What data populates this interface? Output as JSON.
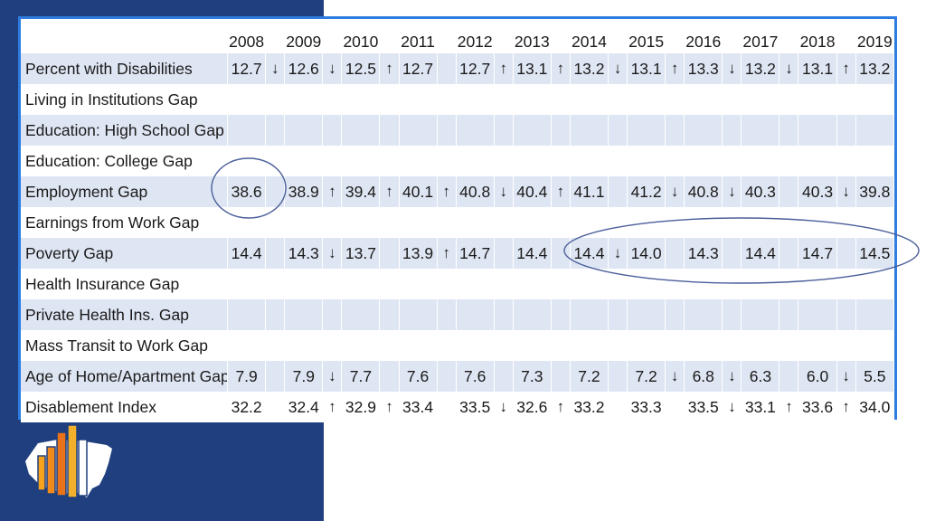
{
  "table": {
    "years": [
      "2008",
      "2009",
      "2010",
      "2011",
      "2012",
      "2013",
      "2014",
      "2015",
      "2016",
      "2017",
      "2018",
      "2019"
    ],
    "rows": [
      {
        "label": "Percent with Disabilities",
        "values": [
          "12.7",
          "12.6",
          "12.5",
          "12.7",
          "12.7",
          "13.1",
          "13.2",
          "13.1",
          "13.3",
          "13.2",
          "13.1",
          "13.2"
        ],
        "arrows": [
          "↓",
          "↓",
          "↑",
          "",
          "↑",
          "↑",
          "↓",
          "↑",
          "↓",
          "↓",
          "↑"
        ]
      },
      {
        "label": "Living in Institutions Gap",
        "values": [
          "",
          "",
          "",
          "",
          "",
          "",
          "",
          "",
          "",
          "",
          "",
          ""
        ],
        "arrows": [
          "",
          "",
          "",
          "",
          "",
          "",
          "",
          "",
          "",
          "",
          ""
        ]
      },
      {
        "label": "Education: High School Gap",
        "values": [
          "",
          "",
          "",
          "",
          "",
          "",
          "",
          "",
          "",
          "",
          "",
          ""
        ],
        "arrows": [
          "",
          "",
          "",
          "",
          "",
          "",
          "",
          "",
          "",
          "",
          ""
        ]
      },
      {
        "label": "Education: College Gap",
        "values": [
          "",
          "",
          "",
          "",
          "",
          "",
          "",
          "",
          "",
          "",
          "",
          ""
        ],
        "arrows": [
          "",
          "",
          "",
          "",
          "",
          "",
          "",
          "",
          "",
          "",
          ""
        ]
      },
      {
        "label": "Employment Gap",
        "values": [
          "38.6",
          "38.9",
          "39.4",
          "40.1",
          "40.8",
          "40.4",
          "41.1",
          "41.2",
          "40.8",
          "40.3",
          "40.3",
          "39.8"
        ],
        "arrows": [
          "",
          "↑",
          "↑",
          "↑",
          "↓",
          "↑",
          "",
          "↓",
          "↓",
          "",
          "↓"
        ]
      },
      {
        "label": "Earnings from Work Gap",
        "values": [
          "",
          "",
          "",
          "",
          "",
          "",
          "",
          "",
          "",
          "",
          "",
          ""
        ],
        "arrows": [
          "",
          "",
          "",
          "",
          "",
          "",
          "",
          "",
          "",
          "",
          ""
        ]
      },
      {
        "label": "Poverty Gap",
        "values": [
          "14.4",
          "14.3",
          "13.7",
          "13.9",
          "14.7",
          "14.4",
          "14.4",
          "14.0",
          "14.3",
          "14.4",
          "14.7",
          "14.5"
        ],
        "arrows": [
          "",
          "↓",
          "",
          "↑",
          "",
          "",
          "↓",
          "",
          "",
          "",
          ""
        ]
      },
      {
        "label": "Health Insurance Gap",
        "values": [
          "",
          "",
          "",
          "",
          "",
          "",
          "",
          "",
          "",
          "",
          "",
          ""
        ],
        "arrows": [
          "",
          "",
          "",
          "",
          "",
          "",
          "",
          "",
          "",
          "",
          ""
        ]
      },
      {
        "label": "Private Health Ins. Gap",
        "values": [
          "",
          "",
          "",
          "",
          "",
          "",
          "",
          "",
          "",
          "",
          "",
          ""
        ],
        "arrows": [
          "",
          "",
          "",
          "",
          "",
          "",
          "",
          "",
          "",
          "",
          ""
        ]
      },
      {
        "label": "Mass Transit to Work Gap",
        "values": [
          "",
          "",
          "",
          "",
          "",
          "",
          "",
          "",
          "",
          "",
          "",
          ""
        ],
        "arrows": [
          "",
          "",
          "",
          "",
          "",
          "",
          "",
          "",
          "",
          "",
          ""
        ]
      },
      {
        "label": "Age of Home/Apartment Gap",
        "values": [
          "7.9",
          "7.9",
          "7.7",
          "7.6",
          "7.6",
          "7.3",
          "7.2",
          "7.2",
          "6.8",
          "6.3",
          "6.0",
          "5.5"
        ],
        "arrows": [
          "",
          "↓",
          "",
          "",
          "",
          "",
          "",
          "↓",
          "↓",
          "",
          "↓"
        ]
      },
      {
        "label": "Disablement Index",
        "values": [
          "32.2",
          "32.4",
          "32.9",
          "33.4",
          "33.5",
          "32.6",
          "33.2",
          "33.3",
          "33.5",
          "33.1",
          "33.6",
          "34.0"
        ],
        "arrows": [
          "",
          "↑",
          "↑",
          "",
          "↓",
          "↑",
          "",
          "",
          "↓",
          "↑",
          "↑"
        ]
      }
    ]
  },
  "colors": {
    "panel": "#1f3f7f",
    "table_border": "#2d7de0",
    "stripe": "#dfe6f3",
    "annotation": "#4a5f9a",
    "logo_bars": [
      "#f6a21d",
      "#f08a1c",
      "#e8731a",
      "#f3b02a"
    ]
  },
  "icons": {
    "logo": "bar-chart-usa-map-logo"
  }
}
